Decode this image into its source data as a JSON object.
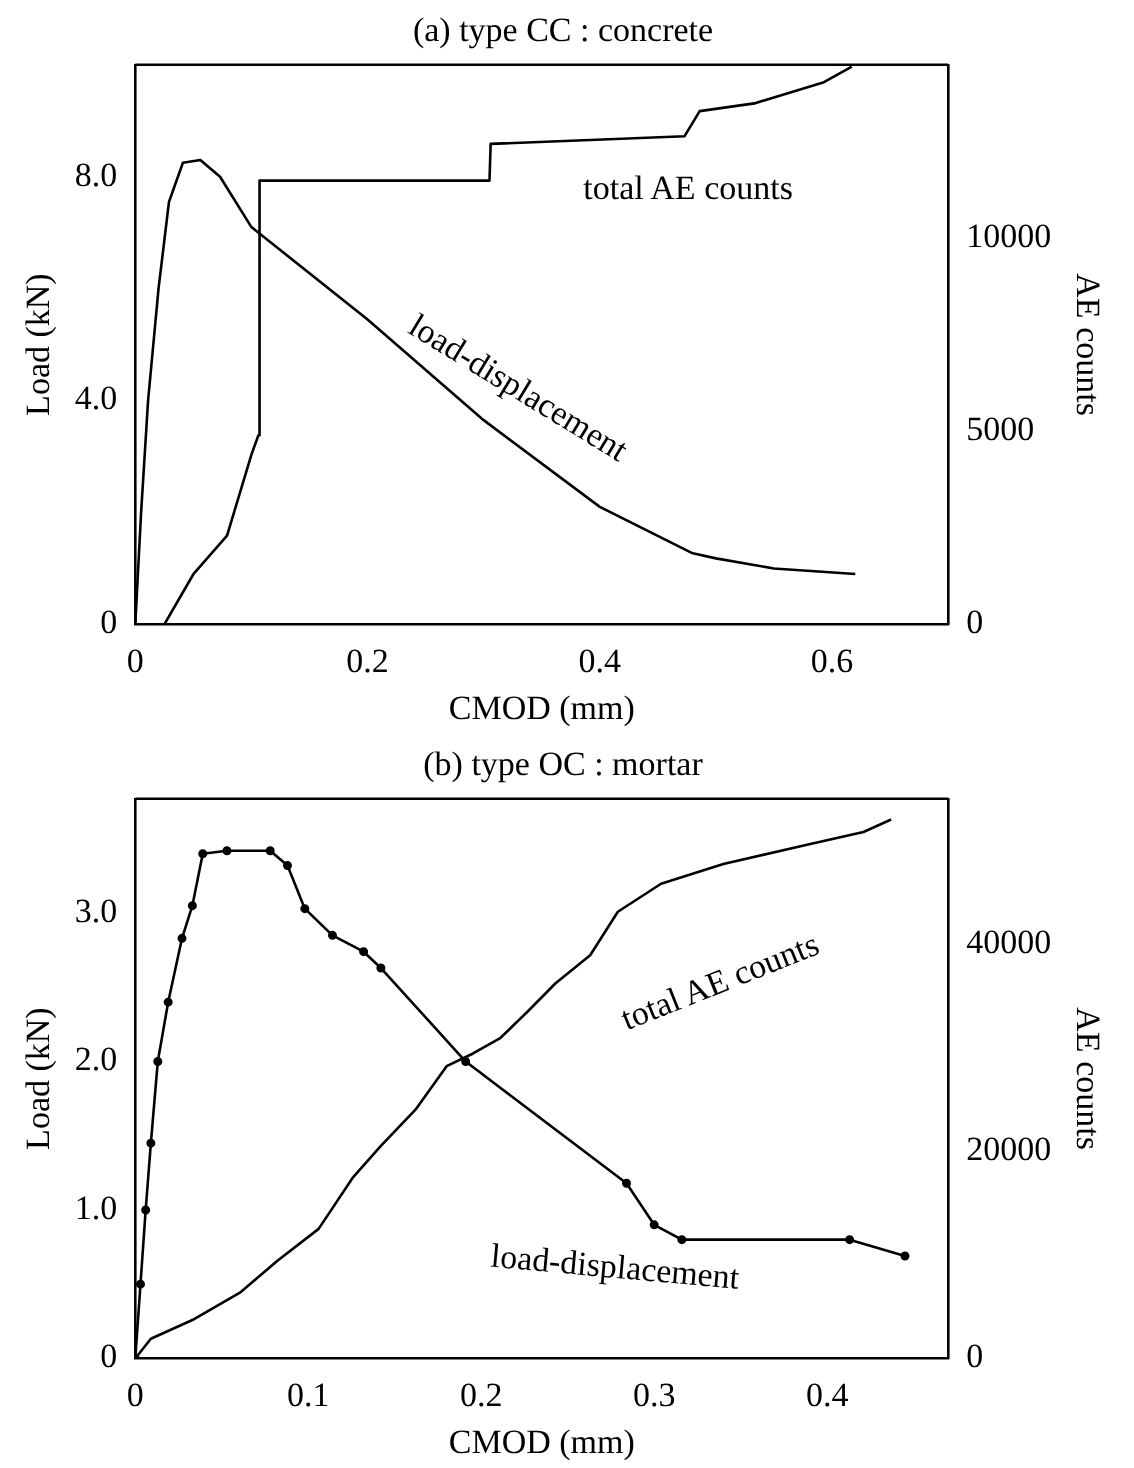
{
  "chart_data": [
    {
      "type": "line",
      "title": "(a) type CC : concrete",
      "xlabel": "CMOD (mm)",
      "ylabel": "Load (kN)",
      "y2label": "AE counts",
      "xlim": [
        0,
        0.7
      ],
      "xticks": [
        0,
        {
          "value": 0.2,
          "label": "0.2"
        },
        {
          "value": 0.4,
          "label": "0.4"
        },
        {
          "value": 0.6,
          "label": "0.6"
        }
      ],
      "ylim": [
        0,
        10
      ],
      "yticks": [
        0,
        {
          "value": 4,
          "label": "4.0"
        },
        {
          "value": 8,
          "label": "8.0"
        }
      ],
      "y2lim": [
        0,
        14500
      ],
      "y2ticks": [
        0,
        5000,
        10000
      ],
      "grid": false,
      "legend": false,
      "line_style": "solid",
      "series": [
        {
          "color": "#000000",
          "x": [
            0,
            0.005,
            0.011,
            0.02,
            0.029,
            0.041,
            0.056,
            0.073,
            0.1,
            0.2,
            0.3,
            0.4,
            0.48,
            0.5,
            0.55,
            0.62
          ],
          "values": [
            0,
            2.0,
            4.0,
            6.0,
            7.55,
            8.25,
            8.3,
            8.0,
            7.1,
            5.45,
            3.65,
            2.1,
            1.27,
            1.18,
            1.0,
            0.9
          ]
        },
        {
          "color": "#000000",
          "axis": "y2",
          "x": [
            0.025,
            0.05,
            0.079,
            0.1,
            0.106,
            0.107,
            0.305,
            0.306,
            0.473,
            0.486,
            0.533,
            0.593,
            0.617
          ],
          "values": [
            0,
            1300,
            2300,
            4400,
            4900,
            11500,
            11500,
            12450,
            12650,
            13300,
            13500,
            14050,
            14450
          ]
        }
      ],
      "annotations": [
        "total AE counts",
        "load-displacement"
      ]
    },
    {
      "type": "line",
      "title": "(b) type OC : mortar",
      "xlabel": "CMOD (mm)",
      "ylabel": "Load (kN)",
      "y2label": "AE counts",
      "xlim": [
        0,
        0.47
      ],
      "xticks": [
        0,
        {
          "value": 0.1,
          "label": "0.1"
        },
        {
          "value": 0.2,
          "label": "0.2"
        },
        {
          "value": 0.3,
          "label": "0.3"
        },
        {
          "value": 0.4,
          "label": "0.4"
        }
      ],
      "ylim": [
        0,
        3.77
      ],
      "yticks": [
        0,
        {
          "value": 1,
          "label": "1.0"
        },
        {
          "value": 2,
          "label": "2.0"
        },
        {
          "value": 3,
          "label": "3.0"
        }
      ],
      "y2lim": [
        0,
        54000
      ],
      "y2ticks": [
        0,
        20000,
        40000
      ],
      "grid": false,
      "legend": false,
      "line_style": "solid",
      "series": [
        {
          "color": "#000000",
          "marker": "circle",
          "x": [
            0,
            0.003,
            0.006,
            0.009,
            0.013,
            0.019,
            0.027,
            0.033,
            0.039,
            0.053,
            0.078,
            0.088,
            0.098,
            0.114,
            0.132,
            0.142,
            0.191,
            0.284,
            0.3,
            0.316,
            0.413,
            0.445
          ],
          "values": [
            0,
            0.5,
            1.0,
            1.45,
            2.0,
            2.4,
            2.83,
            3.05,
            3.4,
            3.42,
            3.42,
            3.32,
            3.03,
            2.85,
            2.74,
            2.63,
            2.0,
            1.18,
            0.9,
            0.8,
            0.8,
            0.69
          ]
        },
        {
          "color": "#000000",
          "axis": "y2",
          "x": [
            0,
            0.009,
            0.033,
            0.061,
            0.082,
            0.106,
            0.126,
            0.142,
            0.162,
            0.18,
            0.195,
            0.211,
            0.227,
            0.243,
            0.263,
            0.279,
            0.304,
            0.34,
            0.389,
            0.421,
            0.437
          ],
          "values": [
            0,
            1900,
            3700,
            6400,
            9400,
            12500,
            17500,
            20500,
            24000,
            28200,
            29400,
            30900,
            33500,
            36200,
            38900,
            43100,
            45800,
            47700,
            49600,
            50800,
            52000
          ]
        }
      ],
      "annotations": [
        "total AE counts",
        "load-displacement"
      ]
    }
  ]
}
